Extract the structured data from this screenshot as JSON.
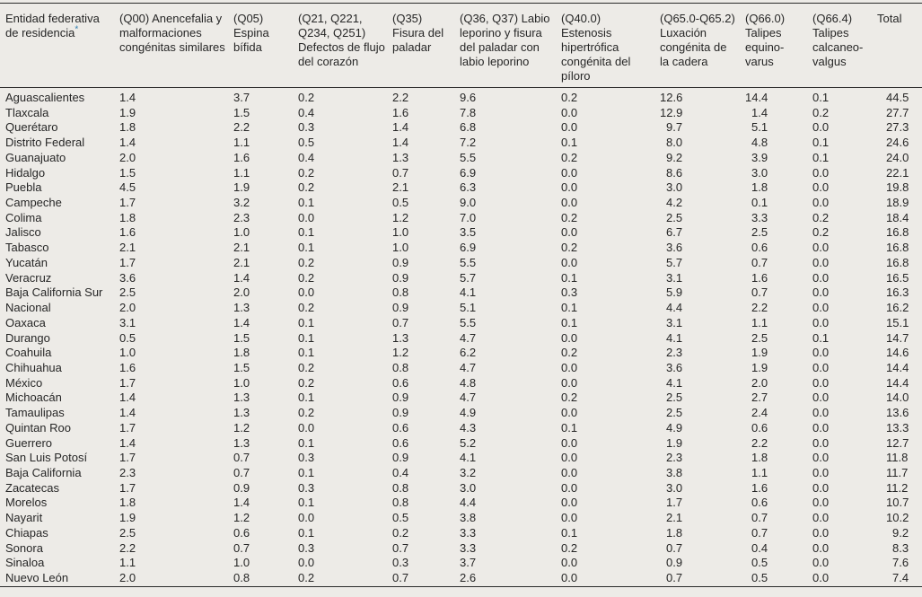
{
  "colors": {
    "background": "#edebe7",
    "text": "#262626",
    "rule": "#2b2b2b",
    "footnote_mark": "#2d7db3"
  },
  "table": {
    "state_header": "Entidad federativa de residencia",
    "footnote_mark": "*",
    "columns": [
      "(Q00) Anencefalia y malformaciones congénitas similares",
      "(Q05) Espina bífida",
      "(Q21, Q221, Q234, Q251) Defectos de flujo del corazón",
      "(Q35) Fisura del paladar",
      "(Q36, Q37) Labio leporino y fisura del paladar con labio leporino",
      "(Q40.0) Estenosis hipertrófica congénita del píloro",
      "(Q65.0-Q65.2) Luxación congénita de la cadera",
      "(Q66.0) Talipes equino-varus",
      "(Q66.4) Talipes calcaneo-valgus"
    ],
    "total_header": "Total",
    "rows": [
      {
        "state": "Aguascalientes",
        "values": [
          "1.4",
          "3.7",
          "0.2",
          "2.2",
          "9.6",
          "0.2",
          "12.6",
          "14.4",
          "0.1",
          "44.5"
        ]
      },
      {
        "state": "Tlaxcala",
        "values": [
          "1.9",
          "1.5",
          "0.4",
          "1.6",
          "7.8",
          "0.0",
          "12.9",
          "1.4",
          "0.2",
          "27.7"
        ]
      },
      {
        "state": "Querétaro",
        "values": [
          "1.8",
          "2.2",
          "0.3",
          "1.4",
          "6.8",
          "0.0",
          "9.7",
          "5.1",
          "0.0",
          "27.3"
        ]
      },
      {
        "state": "Distrito Federal",
        "values": [
          "1.4",
          "1.1",
          "0.5",
          "1.4",
          "7.2",
          "0.1",
          "8.0",
          "4.8",
          "0.1",
          "24.6"
        ]
      },
      {
        "state": "Guanajuato",
        "values": [
          "2.0",
          "1.6",
          "0.4",
          "1.3",
          "5.5",
          "0.2",
          "9.2",
          "3.9",
          "0.1",
          "24.0"
        ]
      },
      {
        "state": "Hidalgo",
        "values": [
          "1.5",
          "1.1",
          "0.2",
          "0.7",
          "6.9",
          "0.0",
          "8.6",
          "3.0",
          "0.0",
          "22.1"
        ]
      },
      {
        "state": "Puebla",
        "values": [
          "4.5",
          "1.9",
          "0.2",
          "2.1",
          "6.3",
          "0.0",
          "3.0",
          "1.8",
          "0.0",
          "19.8"
        ]
      },
      {
        "state": "Campeche",
        "values": [
          "1.7",
          "3.2",
          "0.1",
          "0.5",
          "9.0",
          "0.0",
          "4.2",
          "0.1",
          "0.0",
          "18.9"
        ]
      },
      {
        "state": "Colima",
        "values": [
          "1.8",
          "2.3",
          "0.0",
          "1.2",
          "7.0",
          "0.2",
          "2.5",
          "3.3",
          "0.2",
          "18.4"
        ]
      },
      {
        "state": "Jalisco",
        "values": [
          "1.6",
          "1.0",
          "0.1",
          "1.0",
          "3.5",
          "0.0",
          "6.7",
          "2.5",
          "0.2",
          "16.8"
        ]
      },
      {
        "state": "Tabasco",
        "values": [
          "2.1",
          "2.1",
          "0.1",
          "1.0",
          "6.9",
          "0.2",
          "3.6",
          "0.6",
          "0.0",
          "16.8"
        ]
      },
      {
        "state": "Yucatán",
        "values": [
          "1.7",
          "2.1",
          "0.2",
          "0.9",
          "5.5",
          "0.0",
          "5.7",
          "0.7",
          "0.0",
          "16.8"
        ]
      },
      {
        "state": "Veracruz",
        "values": [
          "3.6",
          "1.4",
          "0.2",
          "0.9",
          "5.7",
          "0.1",
          "3.1",
          "1.6",
          "0.0",
          "16.5"
        ]
      },
      {
        "state": "Baja California Sur",
        "values": [
          "2.5",
          "2.0",
          "0.0",
          "0.8",
          "4.1",
          "0.3",
          "5.9",
          "0.7",
          "0.0",
          "16.3"
        ]
      },
      {
        "state": "Nacional",
        "values": [
          "2.0",
          "1.3",
          "0.2",
          "0.9",
          "5.1",
          "0.1",
          "4.4",
          "2.2",
          "0.0",
          "16.2"
        ]
      },
      {
        "state": "Oaxaca",
        "values": [
          "3.1",
          "1.4",
          "0.1",
          "0.7",
          "5.5",
          "0.1",
          "3.1",
          "1.1",
          "0.0",
          "15.1"
        ]
      },
      {
        "state": "Durango",
        "values": [
          "0.5",
          "1.5",
          "0.1",
          "1.3",
          "4.7",
          "0.0",
          "4.1",
          "2.5",
          "0.1",
          "14.7"
        ]
      },
      {
        "state": "Coahuila",
        "values": [
          "1.0",
          "1.8",
          "0.1",
          "1.2",
          "6.2",
          "0.2",
          "2.3",
          "1.9",
          "0.0",
          "14.6"
        ]
      },
      {
        "state": "Chihuahua",
        "values": [
          "1.6",
          "1.5",
          "0.2",
          "0.8",
          "4.7",
          "0.0",
          "3.6",
          "1.9",
          "0.0",
          "14.4"
        ]
      },
      {
        "state": "México",
        "values": [
          "1.7",
          "1.0",
          "0.2",
          "0.6",
          "4.8",
          "0.0",
          "4.1",
          "2.0",
          "0.0",
          "14.4"
        ]
      },
      {
        "state": "Michoacán",
        "values": [
          "1.4",
          "1.3",
          "0.1",
          "0.9",
          "4.7",
          "0.2",
          "2.5",
          "2.7",
          "0.0",
          "14.0"
        ]
      },
      {
        "state": "Tamaulipas",
        "values": [
          "1.4",
          "1.3",
          "0.2",
          "0.9",
          "4.9",
          "0.0",
          "2.5",
          "2.4",
          "0.0",
          "13.6"
        ]
      },
      {
        "state": "Quintan Roo",
        "values": [
          "1.7",
          "1.2",
          "0.0",
          "0.6",
          "4.3",
          "0.1",
          "4.9",
          "0.6",
          "0.0",
          "13.3"
        ]
      },
      {
        "state": "Guerrero",
        "values": [
          "1.4",
          "1.3",
          "0.1",
          "0.6",
          "5.2",
          "0.0",
          "1.9",
          "2.2",
          "0.0",
          "12.7"
        ]
      },
      {
        "state": "San Luis Potosí",
        "values": [
          "1.7",
          "0.7",
          "0.3",
          "0.9",
          "4.1",
          "0.0",
          "2.3",
          "1.8",
          "0.0",
          "11.8"
        ]
      },
      {
        "state": "Baja California",
        "values": [
          "2.3",
          "0.7",
          "0.1",
          "0.4",
          "3.2",
          "0.0",
          "3.8",
          "1.1",
          "0.0",
          "11.7"
        ]
      },
      {
        "state": "Zacatecas",
        "values": [
          "1.7",
          "0.9",
          "0.3",
          "0.8",
          "3.0",
          "0.0",
          "3.0",
          "1.6",
          "0.0",
          "11.2"
        ]
      },
      {
        "state": "Morelos",
        "values": [
          "1.8",
          "1.4",
          "0.1",
          "0.8",
          "4.4",
          "0.0",
          "1.7",
          "0.6",
          "0.0",
          "10.7"
        ]
      },
      {
        "state": "Nayarit",
        "values": [
          "1.9",
          "1.2",
          "0.0",
          "0.5",
          "3.8",
          "0.0",
          "2.1",
          "0.7",
          "0.0",
          "10.2"
        ]
      },
      {
        "state": "Chiapas",
        "values": [
          "2.5",
          "0.6",
          "0.1",
          "0.2",
          "3.3",
          "0.1",
          "1.8",
          "0.7",
          "0.0",
          "9.2"
        ]
      },
      {
        "state": "Sonora",
        "values": [
          "2.2",
          "0.7",
          "0.3",
          "0.7",
          "3.3",
          "0.2",
          "0.7",
          "0.4",
          "0.0",
          "8.3"
        ]
      },
      {
        "state": "Sinaloa",
        "values": [
          "1.1",
          "1.0",
          "0.0",
          "0.3",
          "3.7",
          "0.0",
          "0.9",
          "0.5",
          "0.0",
          "7.6"
        ]
      },
      {
        "state": "Nuevo León",
        "values": [
          "2.0",
          "0.8",
          "0.2",
          "0.7",
          "2.6",
          "0.0",
          "0.7",
          "0.5",
          "0.0",
          "7.4"
        ]
      }
    ]
  }
}
